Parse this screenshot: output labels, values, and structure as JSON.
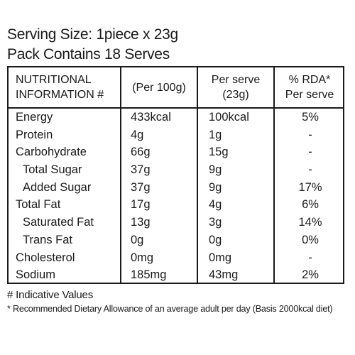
{
  "serving_size": "Serving Size: 1piece x 23g",
  "pack_contains": "Pack Contains 18 Serves",
  "table": {
    "headers": {
      "col1_line1": "NUTRITIONAL",
      "col1_line2": "INFORMATION #",
      "col2": "(Per 100g)",
      "col3_line1": "Per serve",
      "col3_line2": "(23g)",
      "col4_line1": "% RDA*",
      "col4_line2": "Per serve"
    },
    "rows": [
      {
        "name": "Energy",
        "per_100g": "433kcal",
        "per_serve": "100kcal",
        "rda": "5%"
      },
      {
        "name": "Protein",
        "per_100g": "4g",
        "per_serve": "1g",
        "rda": "-"
      },
      {
        "name": "Carbohydrate",
        "per_100g": "66g",
        "per_serve": "15g",
        "rda": "-"
      },
      {
        "name": "Total Sugar",
        "per_100g": "37g",
        "per_serve": "9g",
        "rda": "-"
      },
      {
        "name": "Added Sugar",
        "per_100g": "37g",
        "per_serve": "9g",
        "rda": "17%"
      },
      {
        "name": "Total Fat",
        "per_100g": "17g",
        "per_serve": "4g",
        "rda": "6%"
      },
      {
        "name": "Saturated Fat",
        "per_100g": "13g",
        "per_serve": "3g",
        "rda": "14%"
      },
      {
        "name": "Trans Fat",
        "per_100g": "0g",
        "per_serve": "0g",
        "rda": "0%"
      },
      {
        "name": "Cholesterol",
        "per_100g": "0mg",
        "per_serve": "0mg",
        "rda": "-"
      },
      {
        "name": "Sodium",
        "per_100g": "185mg",
        "per_serve": "43mg",
        "rda": "2%"
      }
    ]
  },
  "footnotes": {
    "indicative": "# Indicative Values",
    "rda": "* Recommended Dietary Allowance of an average adult per day (Basis 2000kcal diet)"
  }
}
